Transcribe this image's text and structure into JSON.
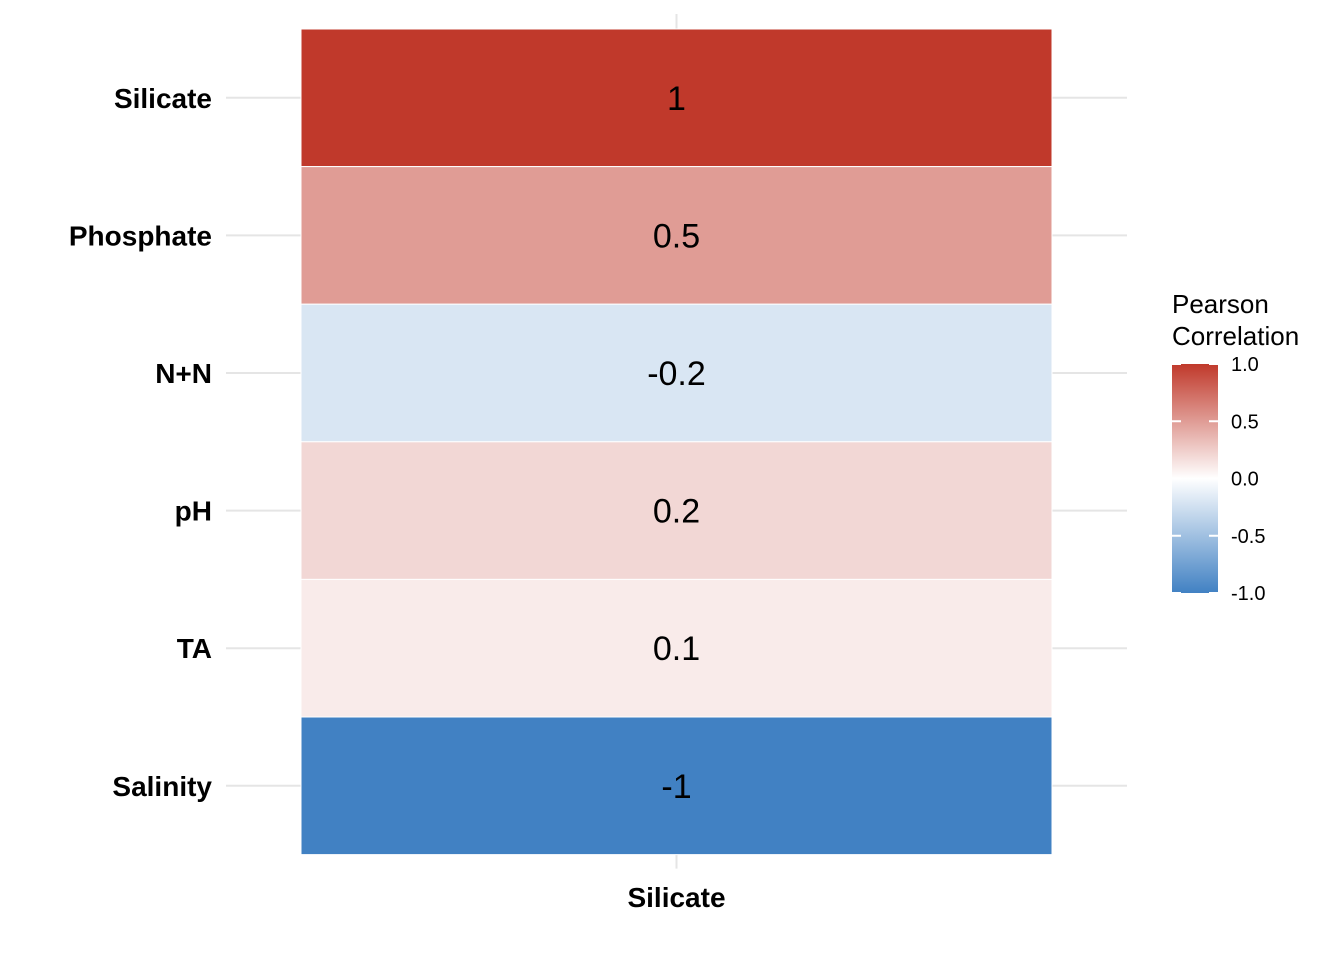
{
  "chart_data": {
    "type": "heatmap",
    "x_categories": [
      "Silicate"
    ],
    "y_categories": [
      "Silicate",
      "Phosphate",
      "N+N",
      "pH",
      "TA",
      "Salinity"
    ],
    "values": [
      1,
      0.5,
      -0.2,
      0.2,
      0.1,
      -1
    ],
    "value_labels": [
      "1",
      "0.5",
      "-0.2",
      "0.2",
      "0.1",
      "-1"
    ],
    "legend": {
      "title_line1": "Pearson",
      "title_line2": "Correlation",
      "range": [
        -1,
        1
      ],
      "ticks": [
        1.0,
        0.5,
        0.0,
        -0.5,
        -1.0
      ],
      "tick_labels": [
        "1.0",
        "0.5",
        "0.0",
        "-0.5",
        "-1.0"
      ],
      "position": "right"
    },
    "colors": {
      "low": "#4181c3",
      "mid": "#ffffff",
      "high": "#c0392b"
    },
    "grid": true
  }
}
